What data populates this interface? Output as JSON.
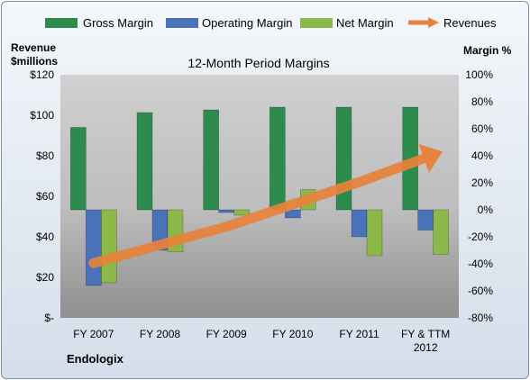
{
  "chart_data": {
    "type": "bar",
    "title": "12-Month Period Margins",
    "categories": [
      "FY 2007",
      "FY 2008",
      "FY 2009",
      "FY 2010",
      "FY 2011",
      "FY & TTM 2012"
    ],
    "series": [
      {
        "name": "Gross Margin",
        "type": "bar",
        "axis": "right",
        "color": "#2e8b4e",
        "values": [
          61,
          72,
          74,
          76,
          76,
          76
        ]
      },
      {
        "name": "Operating Margin",
        "type": "bar",
        "axis": "right",
        "color": "#4a72b8",
        "values": [
          -56,
          -30,
          -2,
          -6,
          -20,
          -15
        ]
      },
      {
        "name": "Net Margin",
        "type": "bar",
        "axis": "right",
        "color": "#8cb84a",
        "values": [
          -54,
          -31,
          -4,
          15,
          -34,
          -33
        ]
      },
      {
        "name": "Revenues",
        "type": "arrow",
        "axis": "left",
        "color": "#e8823a",
        "values": [
          27,
          36,
          45,
          56,
          67,
          79
        ]
      }
    ],
    "left_axis": {
      "label_line1": "Revenue",
      "label_line2": "$millions",
      "range": [
        0,
        120
      ],
      "ticks": [
        "$-",
        "$20",
        "$40",
        "$60",
        "$80",
        "$100",
        "$120"
      ]
    },
    "right_axis": {
      "label": "Margin %",
      "range": [
        -80,
        100
      ],
      "ticks": [
        "-80%",
        "-60%",
        "-40%",
        "-20%",
        "0%",
        "20%",
        "40%",
        "60%",
        "80%",
        "100%"
      ]
    },
    "company": "Endologix",
    "legend_position": "top",
    "grid": false
  }
}
